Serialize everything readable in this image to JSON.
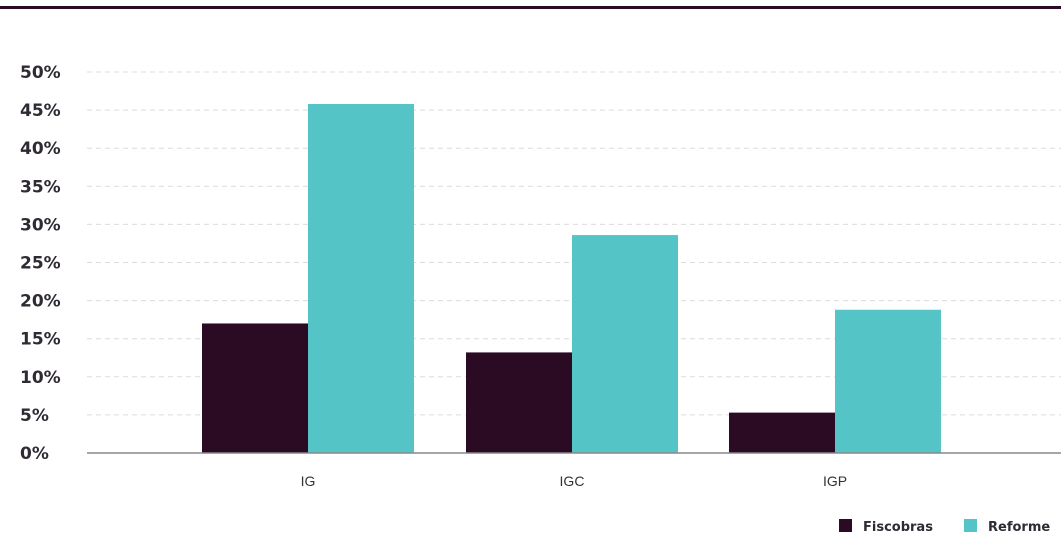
{
  "colors": {
    "top_rule": "#2b0b24",
    "grid": "#dcdcdc",
    "axis": "#888888"
  },
  "chart_data": {
    "type": "bar",
    "categories": [
      "IG",
      "IGC",
      "IGP"
    ],
    "series": [
      {
        "name": "Fiscobras",
        "color": "#2b0b24",
        "values": [
          17,
          13.2,
          5.3
        ]
      },
      {
        "name": "Reforme",
        "color": "#55c4c6",
        "values": [
          45.8,
          28.6,
          18.8
        ]
      }
    ],
    "yticks": [
      "0%",
      "5%",
      "10%",
      "15%",
      "20%",
      "25%",
      "30%",
      "35%",
      "40%",
      "45%",
      "50%"
    ],
    "ylim": [
      0,
      50
    ],
    "grid": true,
    "legend_position": "bottom-right"
  }
}
